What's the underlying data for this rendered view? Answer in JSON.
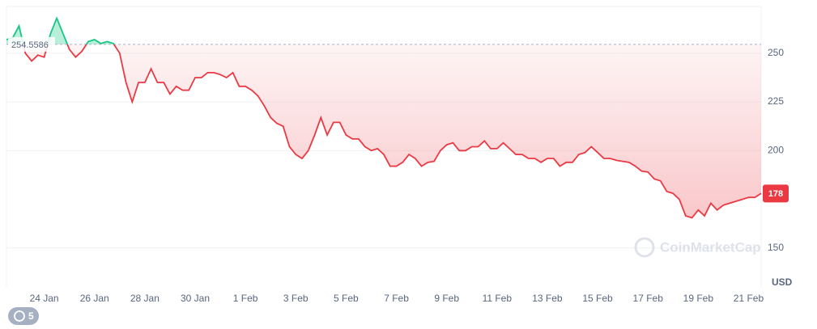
{
  "chart_data": {
    "type": "line",
    "values": [
      257,
      258,
      264,
      250,
      246,
      249,
      248,
      260,
      268,
      260,
      252,
      248,
      251,
      256,
      257,
      255,
      256,
      255,
      250,
      235,
      225,
      235,
      235,
      242,
      235,
      235,
      229,
      233,
      231,
      231,
      237.5,
      237.5,
      240,
      240,
      239,
      237.5,
      240,
      233,
      233,
      231,
      228,
      223,
      217,
      214,
      212.5,
      202,
      198,
      196,
      200,
      208,
      217,
      208,
      214.5,
      214.5,
      208,
      206,
      206,
      202,
      200,
      201,
      198,
      192,
      192,
      194,
      198,
      196,
      192,
      194,
      194.5,
      200,
      203,
      204,
      200,
      200,
      202,
      202,
      205,
      201,
      201,
      204,
      201,
      198,
      198,
      196,
      196,
      194,
      196,
      196,
      192,
      194,
      194,
      198,
      199,
      202,
      199,
      196,
      196,
      195,
      194.5,
      194,
      192,
      189.5,
      189,
      185.5,
      184.5,
      179,
      178,
      175,
      166.5,
      165.5,
      169.5,
      166.5,
      173,
      169.5,
      172,
      173,
      174,
      175,
      176,
      176,
      178
    ],
    "up_color": "#16c784",
    "down_color": "#ea3943",
    "xlim": [
      0,
      120
    ],
    "xticks": [
      {
        "value": 6,
        "label": "24 Jan"
      },
      {
        "value": 14,
        "label": "26 Jan"
      },
      {
        "value": 22,
        "label": "28 Jan"
      },
      {
        "value": 30,
        "label": "30 Jan"
      },
      {
        "value": 38,
        "label": "1 Feb"
      },
      {
        "value": 46,
        "label": "3 Feb"
      },
      {
        "value": 54,
        "label": "5 Feb"
      },
      {
        "value": 62,
        "label": "7 Feb"
      },
      {
        "value": 70,
        "label": "9 Feb"
      },
      {
        "value": 78,
        "label": "11 Feb"
      },
      {
        "value": 86,
        "label": "13 Feb"
      },
      {
        "value": 94,
        "label": "15 Feb"
      },
      {
        "value": 102,
        "label": "17 Feb"
      },
      {
        "value": 110,
        "label": "19 Feb"
      },
      {
        "value": 118,
        "label": "21 Feb"
      }
    ],
    "ylim": [
      130,
      274
    ],
    "yticks": [
      150,
      200,
      225,
      250
    ],
    "grid": true,
    "reference_value": 254.5586,
    "price_tag": 178,
    "currency": "USD",
    "watermark": "CoinMarketCap"
  },
  "history_badge": "5"
}
